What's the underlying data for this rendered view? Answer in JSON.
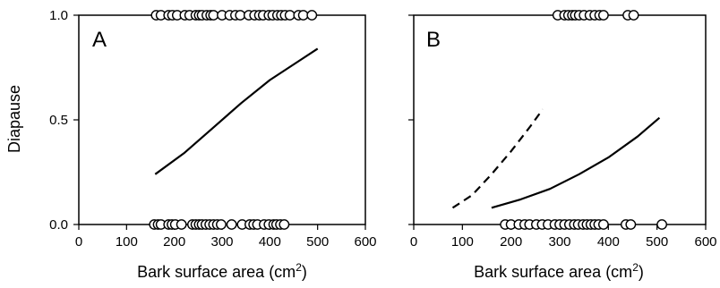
{
  "chart_data": [
    {
      "type": "scatter",
      "panel_label": "A",
      "xlabel_main": "Bark surface area (cm",
      "xlabel_sup": "2",
      "xlabel_close": ")",
      "ylabel": "Diapause",
      "xlim": [
        0,
        600
      ],
      "ylim": [
        0,
        1
      ],
      "xticks": [
        "0",
        "100",
        "200",
        "300",
        "400",
        "500",
        "600"
      ],
      "yticks": [
        "0.0",
        "0.5",
        "1.0"
      ],
      "points": {
        "y1": [
          162,
          172,
          188,
          196,
          206,
          222,
          232,
          245,
          252,
          258,
          268,
          276,
          282,
          300,
          316,
          328,
          338,
          356,
          368,
          378,
          386,
          398,
          406,
          416,
          424,
          432,
          442,
          460,
          470,
          488
        ],
        "y0": [
          158,
          166,
          172,
          188,
          195,
          202,
          215,
          238,
          245,
          252,
          258,
          266,
          274,
          282,
          290,
          298,
          320,
          342,
          358,
          366,
          374,
          388,
          398,
          408,
          414,
          422,
          430
        ]
      },
      "series": [
        {
          "style": "solid",
          "x": [
            160,
            220,
            280,
            340,
            400,
            460,
            500
          ],
          "y": [
            0.24,
            0.34,
            0.46,
            0.58,
            0.69,
            0.78,
            0.84
          ]
        }
      ]
    },
    {
      "type": "scatter",
      "panel_label": "B",
      "xlabel_main": "Bark surface area (cm",
      "xlabel_sup": "2",
      "xlabel_close": ")",
      "ylabel": "",
      "xlim": [
        0,
        600
      ],
      "ylim": [
        0,
        1
      ],
      "xticks": [
        "0",
        "100",
        "200",
        "300",
        "400",
        "500",
        "600"
      ],
      "yticks": [],
      "points": {
        "y1": [
          296,
          310,
          318,
          326,
          332,
          340,
          350,
          362,
          372,
          382,
          390,
          440,
          452
        ],
        "y0": [
          188,
          200,
          216,
          228,
          238,
          252,
          264,
          276,
          290,
          300,
          310,
          320,
          330,
          338,
          348,
          356,
          364,
          372,
          380,
          390,
          436,
          446,
          510
        ]
      },
      "series": [
        {
          "style": "dashed",
          "x": [
            80,
            120,
            160,
            200,
            240,
            265
          ],
          "y": [
            0.08,
            0.14,
            0.24,
            0.35,
            0.47,
            0.55
          ]
        },
        {
          "style": "solid",
          "x": [
            160,
            220,
            280,
            340,
            400,
            460,
            505
          ],
          "y": [
            0.08,
            0.12,
            0.17,
            0.24,
            0.32,
            0.42,
            0.51
          ]
        }
      ]
    }
  ]
}
